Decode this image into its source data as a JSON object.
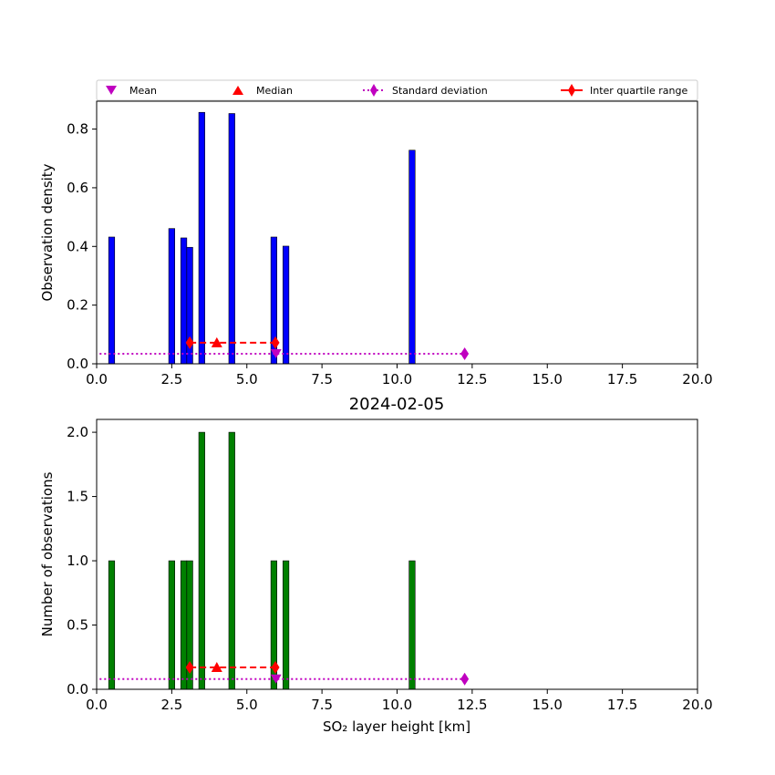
{
  "legend": {
    "items": [
      {
        "label": "Mean",
        "marker": "triangle-down",
        "color": "#c000c0"
      },
      {
        "label": "Median",
        "marker": "triangle-up",
        "color": "#ff0000"
      },
      {
        "label": "Standard deviation",
        "marker": "diamond",
        "line": "dotted",
        "color": "#c000c0"
      },
      {
        "label": "Inter quartile range",
        "marker": "diamond",
        "line": "solid",
        "color": "#ff0000"
      }
    ]
  },
  "chart_data": [
    {
      "type": "bar",
      "title": "",
      "xlabel": "",
      "ylabel": "Observation density",
      "xlim": [
        0,
        20
      ],
      "ylim": [
        0,
        0.895
      ],
      "xticks": [
        "0.0",
        "2.5",
        "5.0",
        "7.5",
        "10.0",
        "12.5",
        "15.0",
        "17.5",
        "20.0"
      ],
      "yticks": [
        "0.0",
        "0.2",
        "0.4",
        "0.6",
        "0.8"
      ],
      "ytick_values": [
        0,
        0.2,
        0.4,
        0.6,
        0.8
      ],
      "bar_color": "#0000ff",
      "bars": [
        {
          "x0": 0.4,
          "x1": 0.6,
          "value": 0.432
        },
        {
          "x0": 2.4,
          "x1": 2.6,
          "value": 0.461
        },
        {
          "x0": 2.8,
          "x1": 3.0,
          "value": 0.429
        },
        {
          "x0": 3.0,
          "x1": 3.2,
          "value": 0.397
        },
        {
          "x0": 3.4,
          "x1": 3.6,
          "value": 0.857
        },
        {
          "x0": 4.4,
          "x1": 4.6,
          "value": 0.853
        },
        {
          "x0": 5.8,
          "x1": 6.0,
          "value": 0.432
        },
        {
          "x0": 6.2,
          "x1": 6.4,
          "value": 0.401
        },
        {
          "x0": 10.4,
          "x1": 10.6,
          "value": 0.728
        }
      ],
      "stats": {
        "mean": {
          "x": 5.97,
          "y": 0.034
        },
        "median": {
          "x": 4.0,
          "y": 0.072
        },
        "std": {
          "x0": 0.1,
          "x1": 12.25,
          "y": 0.034
        },
        "iqr": {
          "x0": 3.1,
          "x1": 5.95,
          "y": 0.072
        }
      }
    },
    {
      "type": "bar",
      "title": "2024-02-05",
      "xlabel": "SO₂ layer height [km]",
      "ylabel": "Number of observations",
      "xlim": [
        0,
        20
      ],
      "ylim": [
        0,
        2.1
      ],
      "xticks": [
        "0.0",
        "2.5",
        "5.0",
        "7.5",
        "10.0",
        "12.5",
        "15.0",
        "17.5",
        "20.0"
      ],
      "yticks": [
        "0.0",
        "0.5",
        "1.0",
        "1.5",
        "2.0"
      ],
      "ytick_values": [
        0,
        0.5,
        1.0,
        1.5,
        2.0
      ],
      "bar_color": "#008000",
      "bars": [
        {
          "x0": 0.4,
          "x1": 0.6,
          "value": 1
        },
        {
          "x0": 2.4,
          "x1": 2.6,
          "value": 1
        },
        {
          "x0": 2.8,
          "x1": 3.0,
          "value": 1
        },
        {
          "x0": 3.0,
          "x1": 3.2,
          "value": 1
        },
        {
          "x0": 3.4,
          "x1": 3.6,
          "value": 2
        },
        {
          "x0": 4.4,
          "x1": 4.6,
          "value": 2
        },
        {
          "x0": 5.8,
          "x1": 6.0,
          "value": 1
        },
        {
          "x0": 6.2,
          "x1": 6.4,
          "value": 1
        },
        {
          "x0": 10.4,
          "x1": 10.6,
          "value": 1
        }
      ],
      "stats": {
        "mean": {
          "x": 5.97,
          "y": 0.08
        },
        "median": {
          "x": 4.0,
          "y": 0.17
        },
        "std": {
          "x0": 0.1,
          "x1": 12.25,
          "y": 0.08
        },
        "iqr": {
          "x0": 3.1,
          "x1": 5.95,
          "y": 0.17
        }
      }
    }
  ]
}
